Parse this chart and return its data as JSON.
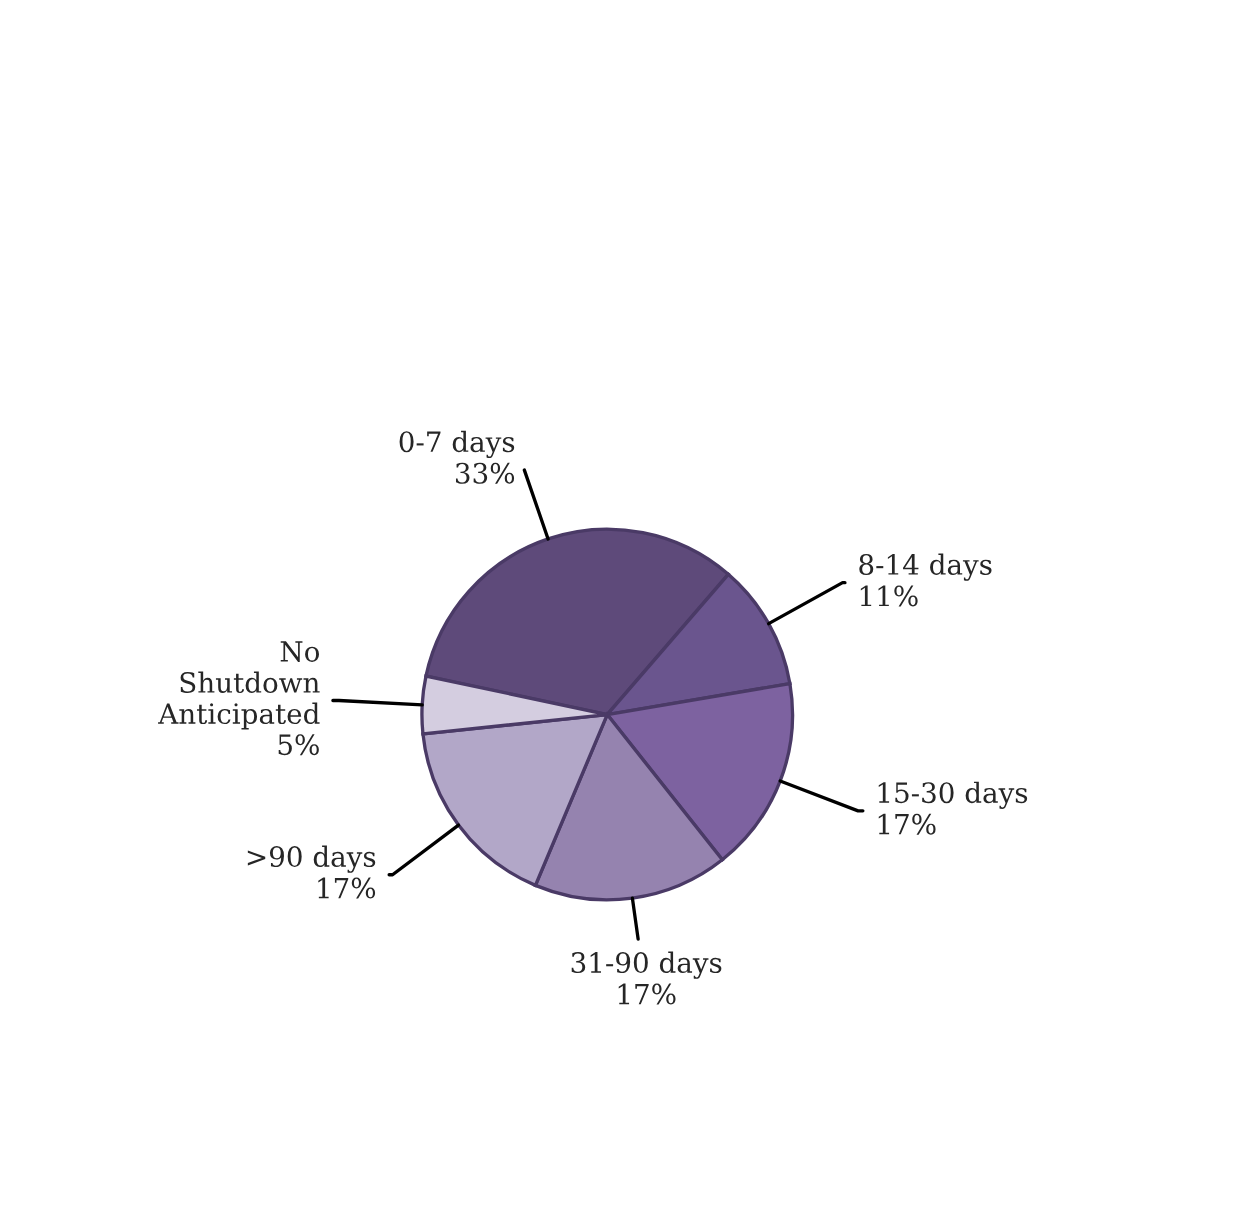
{
  "chart_data": {
    "type": "pie",
    "categories": [
      "0-7 days",
      "8-14 days",
      "15-30 days",
      "31-90 days",
      ">90 days",
      "No Shutdown Anticipated"
    ],
    "values": [
      33,
      11,
      17,
      17,
      17,
      5
    ],
    "value_labels": [
      "33%",
      "11%",
      "17%",
      "17%",
      "17%",
      "5%"
    ],
    "colors": [
      "#5e4a7a",
      "#6a558e",
      "#7d62a0",
      "#9583af",
      "#b2a7c8",
      "#d4cde0"
    ],
    "legend": false
  }
}
